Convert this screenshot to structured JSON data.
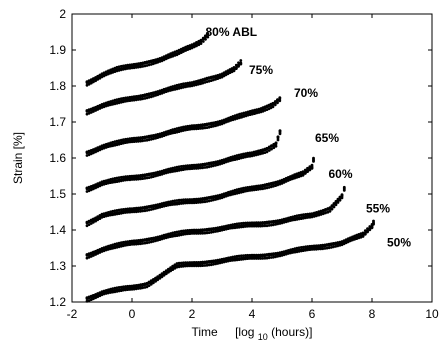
{
  "chart_data": {
    "type": "scatter",
    "title": "",
    "xlabel": "Time",
    "xlabel_unit_prefix": "[log",
    "xlabel_unit_sub": "10",
    "xlabel_unit_suffix": " (hours)]",
    "ylabel": "Strain  [%]",
    "xlim": [
      -2,
      10
    ],
    "ylim": [
      1.2,
      2.0
    ],
    "xticks": [
      -2,
      0,
      2,
      4,
      6,
      8,
      10
    ],
    "xtick_labels": [
      "-2",
      "0",
      "2",
      "4",
      "6",
      "8",
      "10"
    ],
    "yticks": [
      1.2,
      1.3,
      1.4,
      1.5,
      1.6,
      1.7,
      1.8,
      1.9,
      2.0
    ],
    "ytick_labels": [
      "1.2",
      "1.3",
      "1.4",
      "1.5",
      "1.6",
      "1.7",
      "1.8",
      "1.9",
      "2"
    ],
    "grid": false,
    "marker_color": "#000000",
    "series": [
      {
        "name": "80% ABL",
        "label_at": [
          2.45,
          1.95
        ],
        "points": [
          [
            -1.5,
            1.81
          ],
          [
            -1.0,
            1.83
          ],
          [
            -0.5,
            1.845
          ],
          [
            0.0,
            1.855
          ],
          [
            0.5,
            1.865
          ],
          [
            1.0,
            1.875
          ],
          [
            1.5,
            1.89
          ],
          [
            2.0,
            1.91
          ],
          [
            2.3,
            1.925
          ],
          [
            2.6,
            1.95
          ]
        ]
      },
      {
        "name": "75%",
        "label_at": [
          3.9,
          1.845
        ],
        "points": [
          [
            -1.5,
            1.73
          ],
          [
            -1.0,
            1.745
          ],
          [
            -0.5,
            1.755
          ],
          [
            0.0,
            1.765
          ],
          [
            0.5,
            1.775
          ],
          [
            1.0,
            1.785
          ],
          [
            1.5,
            1.795
          ],
          [
            2.0,
            1.805
          ],
          [
            2.5,
            1.82
          ],
          [
            3.0,
            1.83
          ],
          [
            3.4,
            1.845
          ],
          [
            3.7,
            1.87
          ]
        ]
      },
      {
        "name": "70%",
        "label_at": [
          5.4,
          1.78
        ],
        "points": [
          [
            -1.5,
            1.615
          ],
          [
            -1.0,
            1.63
          ],
          [
            0.0,
            1.65
          ],
          [
            1.0,
            1.665
          ],
          [
            2.0,
            1.685
          ],
          [
            3.0,
            1.7
          ],
          [
            3.8,
            1.72
          ],
          [
            4.3,
            1.735
          ],
          [
            4.7,
            1.75
          ],
          [
            5.0,
            1.77
          ]
        ]
      },
      {
        "name": "65%",
        "label_at": [
          6.1,
          1.655
        ],
        "points": [
          [
            -1.5,
            1.515
          ],
          [
            -1.0,
            1.53
          ],
          [
            0.0,
            1.545
          ],
          [
            1.0,
            1.56
          ],
          [
            2.0,
            1.575
          ],
          [
            3.0,
            1.59
          ],
          [
            4.0,
            1.61
          ],
          [
            4.5,
            1.625
          ],
          [
            4.8,
            1.64
          ],
          [
            5.0,
            1.69
          ]
        ]
      },
      {
        "name": "60%",
        "label_at": [
          6.55,
          1.555
        ],
        "points": [
          [
            -1.5,
            1.42
          ],
          [
            -1.0,
            1.44
          ],
          [
            0.0,
            1.455
          ],
          [
            1.0,
            1.47
          ],
          [
            2.0,
            1.48
          ],
          [
            3.0,
            1.495
          ],
          [
            4.0,
            1.515
          ],
          [
            5.0,
            1.535
          ],
          [
            5.7,
            1.555
          ],
          [
            6.0,
            1.575
          ],
          [
            6.1,
            1.615
          ]
        ]
      },
      {
        "name": "55%",
        "label_at": [
          7.8,
          1.46
        ],
        "points": [
          [
            -1.5,
            1.33
          ],
          [
            -1.0,
            1.345
          ],
          [
            0.0,
            1.365
          ],
          [
            1.0,
            1.38
          ],
          [
            2.0,
            1.395
          ],
          [
            3.0,
            1.405
          ],
          [
            4.0,
            1.415
          ],
          [
            5.0,
            1.425
          ],
          [
            6.0,
            1.44
          ],
          [
            6.6,
            1.46
          ],
          [
            7.0,
            1.495
          ],
          [
            7.15,
            1.535
          ]
        ]
      },
      {
        "name": "50%",
        "label_at": [
          8.5,
          1.365
        ],
        "points": [
          [
            -1.5,
            1.21
          ],
          [
            -1.0,
            1.225
          ],
          [
            0.0,
            1.24
          ],
          [
            0.5,
            1.25
          ],
          [
            1.0,
            1.275
          ],
          [
            1.5,
            1.3
          ],
          [
            2.0,
            1.305
          ],
          [
            3.0,
            1.315
          ],
          [
            4.0,
            1.325
          ],
          [
            5.0,
            1.335
          ],
          [
            6.0,
            1.35
          ],
          [
            7.0,
            1.365
          ],
          [
            7.7,
            1.385
          ],
          [
            8.0,
            1.41
          ],
          [
            8.1,
            1.43
          ]
        ]
      }
    ]
  }
}
